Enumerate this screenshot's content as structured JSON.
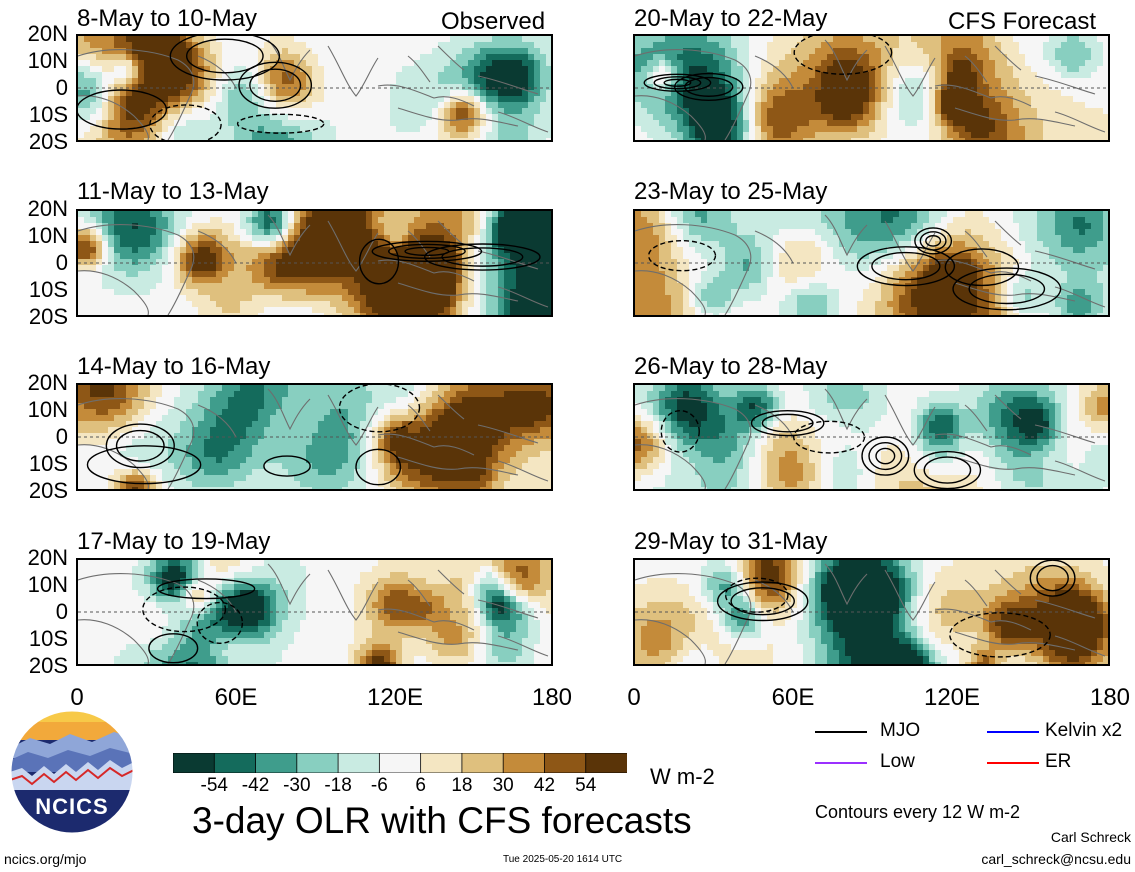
{
  "colors": {
    "bins": [
      "#0a3a32",
      "#146b5c",
      "#3f9d8c",
      "#88cfc0",
      "#c9ebe2",
      "#f6f6f6",
      "#f4e6c2",
      "#dfc07e",
      "#c48b3a",
      "#8e5716",
      "#5a3408"
    ],
    "mjo": "#000000",
    "kelvin": "#0000ff",
    "low": "#9b30ff",
    "er": "#ff0000"
  },
  "panels": {
    "observed_tag": "Observed",
    "forecast_tag": "CFS Forecast",
    "left": [
      {
        "title": "8-May to 10-May"
      },
      {
        "title": "11-May to 13-May"
      },
      {
        "title": "14-May to 16-May"
      },
      {
        "title": "17-May to 19-May"
      }
    ],
    "right": [
      {
        "title": "20-May to 22-May"
      },
      {
        "title": "23-May to 25-May"
      },
      {
        "title": "26-May to 28-May"
      },
      {
        "title": "29-May to 31-May"
      }
    ]
  },
  "axes": {
    "lat_labels": [
      "20N",
      "10N",
      "0",
      "10S",
      "20S"
    ],
    "lon_labels": [
      "0",
      "60E",
      "120E",
      "180"
    ]
  },
  "colorbar": {
    "labels": [
      "-54",
      "-42",
      "-30",
      "-18",
      "-6",
      "6",
      "18",
      "30",
      "42",
      "54"
    ],
    "units": "W m-2"
  },
  "legend": {
    "mjo": "MJO",
    "kelvin": "Kelvin x2",
    "low": "Low",
    "er": "ER",
    "contour_note": "Contours every 12 W m-2"
  },
  "logo": {
    "text": "NCICS"
  },
  "title": "3-day OLR with CFS forecasts",
  "footer": {
    "url": "ncics.org/mjo",
    "timestamp": "Tue 2025-05-20 1614 UTC",
    "author": "Carl Schreck",
    "email": "carl_schreck@ncsu.edu"
  },
  "chart_data": {
    "type": "heatmap",
    "variable": "3-day OLR anomaly",
    "units": "W m-2",
    "x_axis": {
      "label_ticks": [
        "0",
        "60E",
        "120E",
        "180"
      ],
      "range_deg_east": [
        0,
        180
      ]
    },
    "y_axis": {
      "label_ticks": [
        "20N",
        "10N",
        "0",
        "10S",
        "20S"
      ],
      "range_deg": [
        -20,
        20
      ]
    },
    "color_levels": [
      -54,
      -42,
      -30,
      -18,
      -6,
      6,
      18,
      30,
      42,
      54
    ],
    "observed_periods": [
      "8-May to 10-May",
      "11-May to 13-May",
      "14-May to 16-May",
      "17-May to 19-May"
    ],
    "forecast_periods": [
      "20-May to 22-May",
      "23-May to 25-May",
      "26-May to 28-May",
      "29-May to 31-May"
    ],
    "contour_interval": 12,
    "contour_series": [
      "MJO",
      "Kelvin x2",
      "Low",
      "ER"
    ]
  }
}
